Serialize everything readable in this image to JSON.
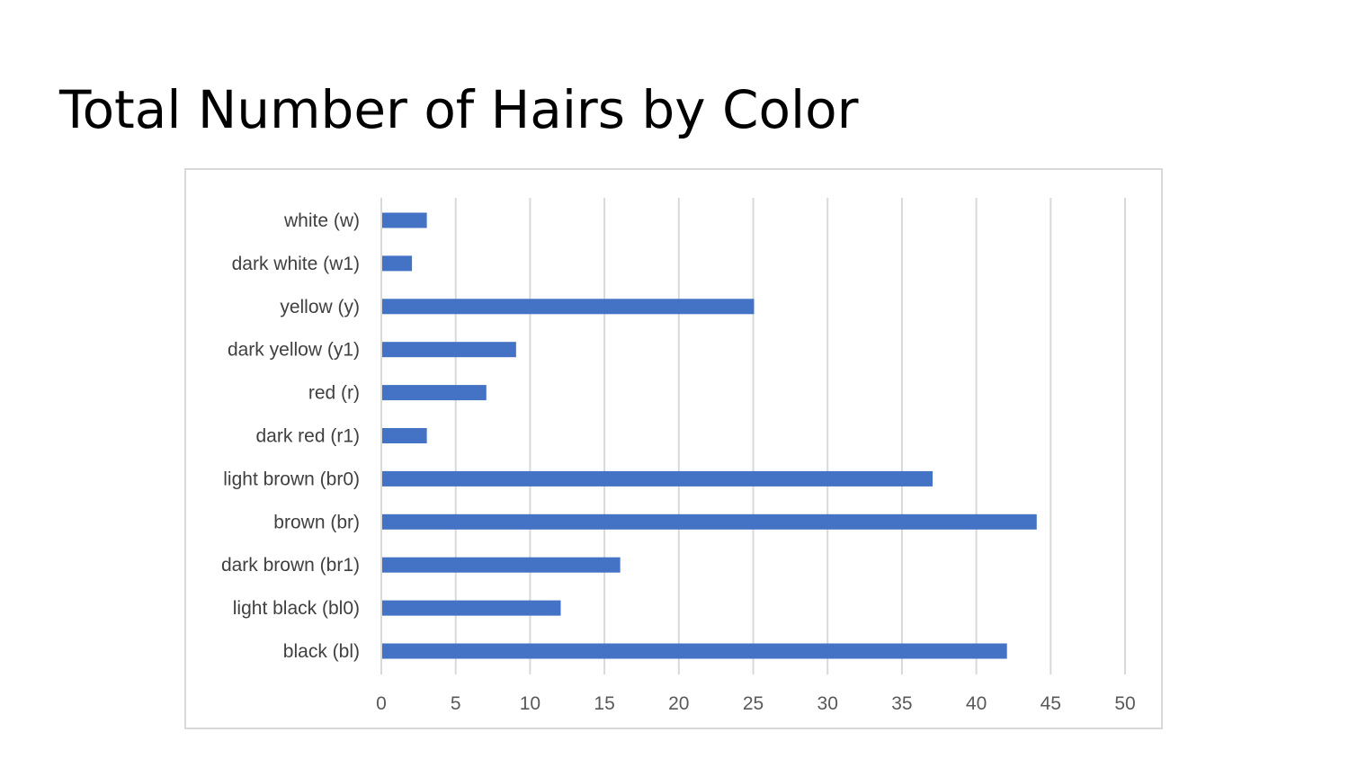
{
  "slide": {
    "title": "Total Number of Hairs by Color"
  },
  "chart_data": {
    "type": "bar",
    "orientation": "horizontal",
    "title": "",
    "xlabel": "",
    "ylabel": "",
    "categories": [
      "white (w)",
      "dark white (w1)",
      "yellow (y)",
      "dark yellow (y1)",
      "red (r)",
      "dark red (r1)",
      "light brown (br0)",
      "brown (br)",
      "dark brown (br1)",
      "light black (bl0)",
      "black (bl)"
    ],
    "values": [
      3,
      2,
      25,
      9,
      7,
      3,
      37,
      44,
      16,
      12,
      42
    ],
    "xlim": [
      0,
      50
    ],
    "xticks": [
      0,
      5,
      10,
      15,
      20,
      25,
      30,
      35,
      40,
      45,
      50
    ],
    "grid": "vertical",
    "legend": "none",
    "colors": {
      "bar": "#4472c4",
      "grid": "#d9d9d9",
      "frame": "#d9d9d9"
    }
  }
}
